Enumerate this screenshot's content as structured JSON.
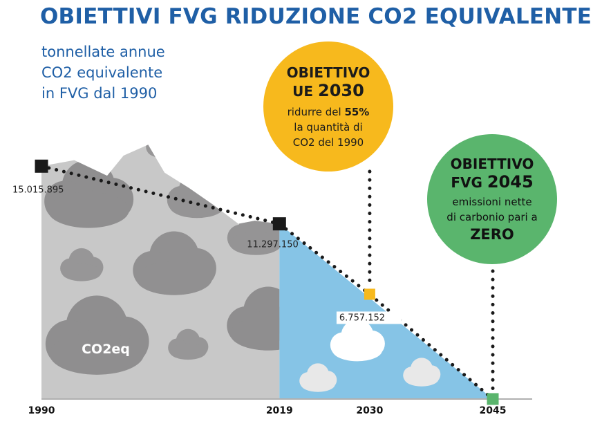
{
  "title": "OBIETTIVI FVG RIDUZIONE CO2 EQUIVALENTE",
  "subtitle_lines": [
    "tonnellate annue",
    "CO2 equivalente",
    "in FVG dal 1990"
  ],
  "badge_ue": {
    "line1": "OBIETTIVO",
    "line2_prefix": "UE ",
    "line2_year": "2030",
    "line3_prefix": "ridurre del ",
    "line3_bold": "55%",
    "line4": "la quantità di",
    "line5": "CO2 del 1990",
    "color": "#f7b91d"
  },
  "badge_fvg": {
    "line1": "OBIETTIVO",
    "line2_prefix": "FVG ",
    "line2_year": "2045",
    "line3": "emissioni nette",
    "line4": "di carbonio pari a",
    "line5": "ZERO",
    "color": "#5ab56d"
  },
  "area_label": "CO2eq",
  "colors": {
    "title": "#1f5fa6",
    "historical_area": "#c8c8c8",
    "projection_area": "#86c4e6",
    "clouds_dark": "#8f8e8f",
    "clouds_light": "#e8e8e8",
    "marker_historic": "#1a1a1a",
    "marker_2030": "#f7b91d",
    "marker_2045": "#5ab56d"
  },
  "chart_data": {
    "type": "area",
    "title": "OBIETTIVI FVG RIDUZIONE CO2 EQUIVALENTE",
    "ylabel": "tonnellate annue CO2 equivalente in FVG dal 1990",
    "x_tick_labels": [
      "1990",
      "2019",
      "2030",
      "2045"
    ],
    "x_range": [
      1990,
      2045
    ],
    "ylim": [
      0,
      16500000
    ],
    "series": [
      {
        "type": "trajectory",
        "x": [
          1990,
          2019,
          2030,
          2045
        ],
        "y": [
          15015895,
          11297150,
          6757152,
          0
        ],
        "value_labels": [
          "15.015.895",
          "11.297.150",
          "6.757.152",
          ""
        ]
      }
    ],
    "historical_profile": {
      "x": [
        1990,
        1994,
        1998,
        2000,
        2003,
        2005,
        2008,
        2011,
        2014,
        2016,
        2019
      ],
      "y": [
        15015895,
        15400000,
        14400000,
        15700000,
        16400000,
        14600000,
        13600000,
        12500000,
        11300000,
        11500000,
        11297150
      ]
    },
    "grid": false
  }
}
